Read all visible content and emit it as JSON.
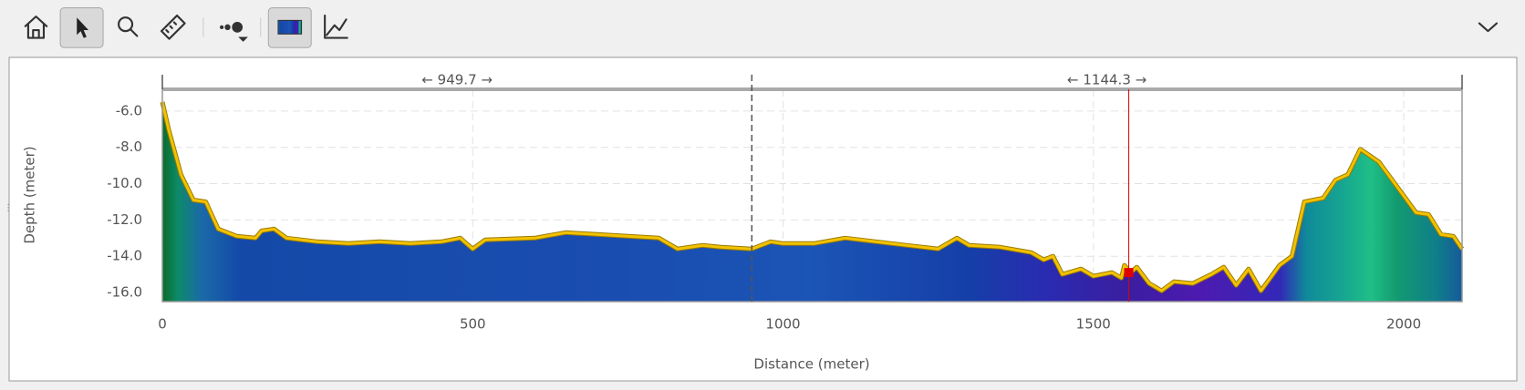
{
  "chart_data": {
    "type": "area",
    "x_label": "Distance (meter)",
    "y_label": "Depth (meter)",
    "x": [
      0,
      10,
      30,
      50,
      70,
      90,
      120,
      150,
      160,
      180,
      200,
      250,
      300,
      350,
      400,
      450,
      480,
      500,
      520,
      600,
      650,
      700,
      750,
      800,
      830,
      870,
      900,
      949.7,
      980,
      1000,
      1050,
      1100,
      1150,
      1200,
      1250,
      1280,
      1300,
      1350,
      1400,
      1420,
      1435,
      1450,
      1480,
      1500,
      1530,
      1545,
      1550,
      1560,
      1570,
      1590,
      1610,
      1630,
      1660,
      1690,
      1710,
      1730,
      1750,
      1770,
      1800,
      1820,
      1840,
      1870,
      1890,
      1910,
      1930,
      1960,
      1990,
      2020,
      2040,
      2060,
      2080,
      2094
    ],
    "values": [
      -5.5,
      -7,
      -9.5,
      -10.9,
      -11,
      -12.5,
      -12.9,
      -13,
      -12.6,
      -12.5,
      -13,
      -13.2,
      -13.3,
      -13.2,
      -13.3,
      -13.2,
      -13.0,
      -13.6,
      -13.1,
      -13.0,
      -12.7,
      -12.8,
      -12.9,
      -13.0,
      -13.6,
      -13.4,
      -13.5,
      -13.6,
      -13.2,
      -13.3,
      -13.3,
      -13.0,
      -13.2,
      -13.4,
      -13.6,
      -13.0,
      -13.4,
      -13.5,
      -13.8,
      -14.2,
      -14.0,
      -15.0,
      -14.7,
      -15.1,
      -14.9,
      -15.2,
      -14.5,
      -14.9,
      -14.6,
      -15.5,
      -15.9,
      -15.4,
      -15.5,
      -15.0,
      -14.6,
      -15.6,
      -14.7,
      -15.9,
      -14.5,
      -14.0,
      -11,
      -10.8,
      -9.8,
      -9.5,
      -8.1,
      -8.8,
      -10.2,
      -11.6,
      -11.7,
      -12.8,
      -12.9,
      -13.6
    ],
    "line_color": "#f2c200",
    "xlim": [
      0,
      2094
    ],
    "ylim": [
      -16.5,
      -4.8
    ],
    "xticks": [
      0,
      500,
      1000,
      1500,
      2000
    ],
    "yticks": [
      {
        "value": -6,
        "label": "-6.0"
      },
      {
        "value": -8,
        "label": "-8.0"
      },
      {
        "value": -10,
        "label": "-10.0"
      },
      {
        "value": -12,
        "label": "-12.0"
      },
      {
        "value": -14,
        "label": "-14.0"
      },
      {
        "value": -16,
        "label": "-16.0"
      }
    ],
    "grid": true,
    "divider_x": 949.7,
    "segment_labels": [
      "← 949.7 →",
      "← 1144.3 →"
    ],
    "cursor": {
      "x": 1557,
      "y": -14.9,
      "color": "#e00000"
    }
  }
}
